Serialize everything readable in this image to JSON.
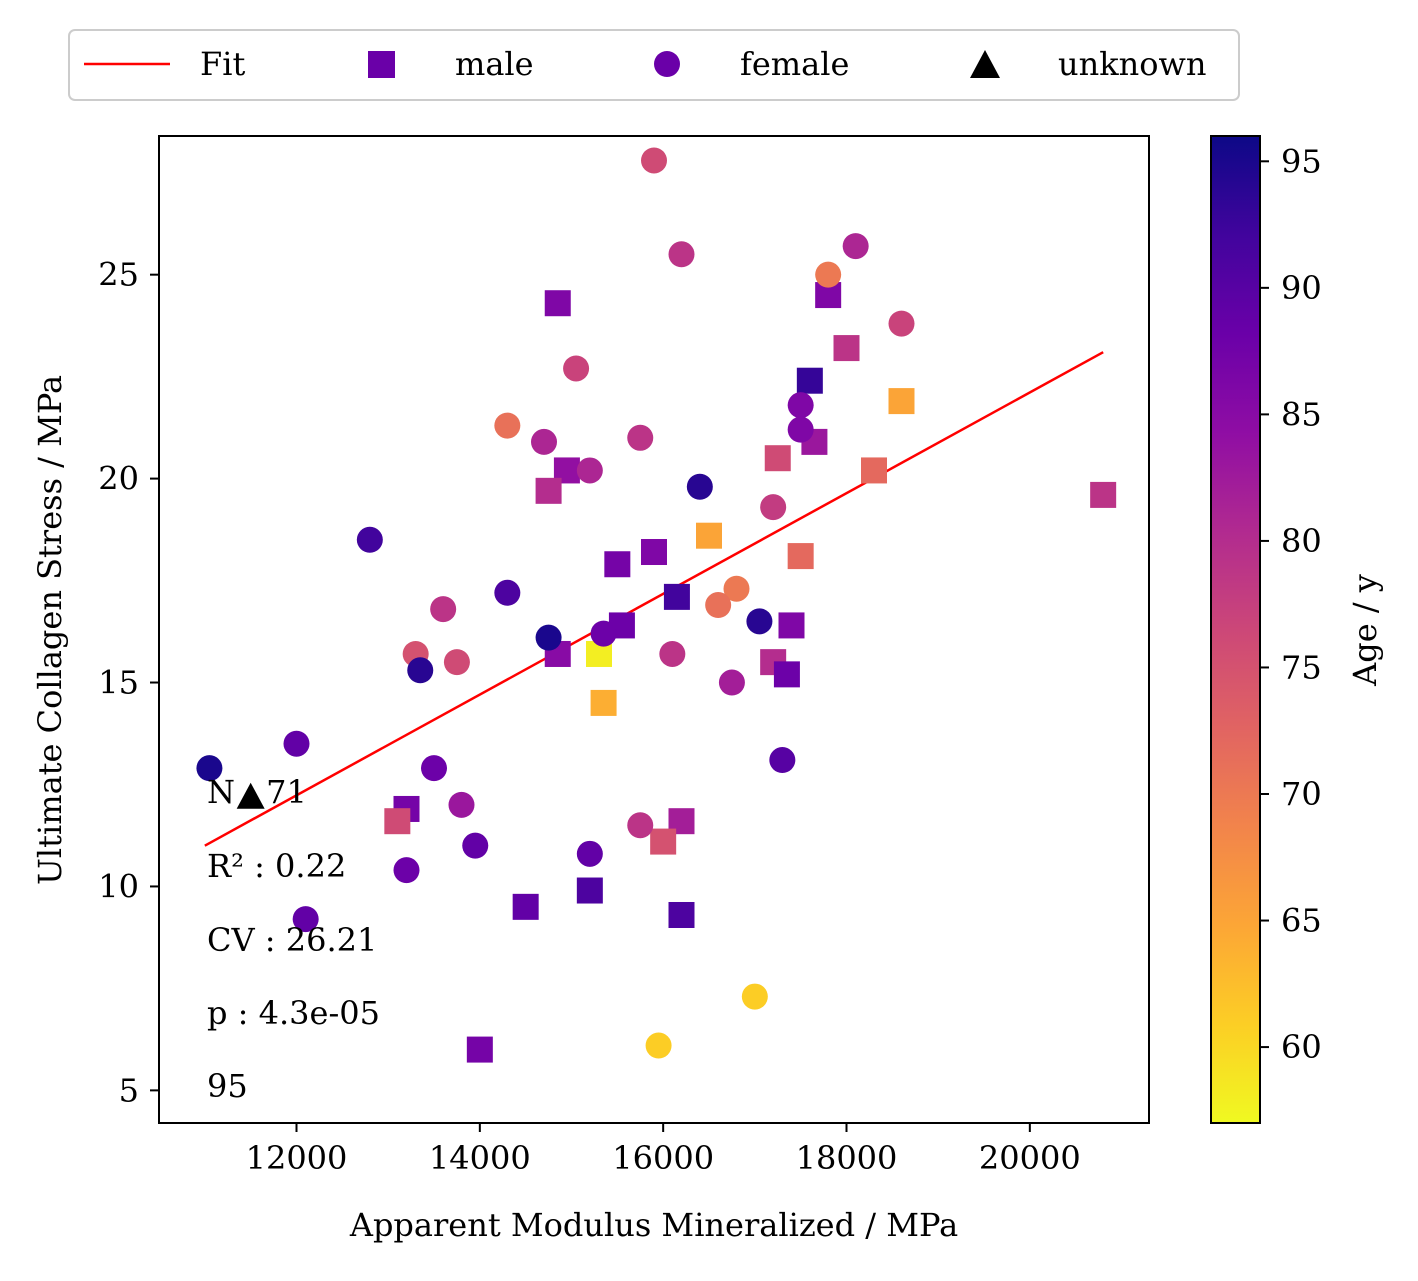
{
  "chart_data": {
    "type": "scatter",
    "xlabel": "Apparent Modulus Mineralized / MPa",
    "ylabel": "Ultimate Collagen Stress / MPa",
    "xlim": [
      10500,
      21300
    ],
    "ylim": [
      4.2,
      28.4
    ],
    "xticks": [
      12000,
      14000,
      16000,
      18000,
      20000
    ],
    "yticks": [
      5,
      10,
      15,
      20,
      25
    ],
    "grid": false,
    "legend": {
      "placement": "top, outside, horizontal",
      "entries": [
        {
          "label": "Fit",
          "marker": "line",
          "color": "#ff0000"
        },
        {
          "label": "male",
          "marker": "square",
          "color": "#6a00a8"
        },
        {
          "label": "female",
          "marker": "circle",
          "color": "#6a00a8"
        },
        {
          "label": "unknown",
          "marker": "triangle",
          "color": "#000000"
        }
      ]
    },
    "colorbar": {
      "label": "Age / y",
      "colormap": "plasma",
      "range": [
        57,
        96
      ],
      "ticks": [
        60,
        65,
        70,
        75,
        80,
        85,
        90,
        95
      ]
    },
    "fit": {
      "x": [
        11000,
        20800
      ],
      "y": [
        11.0,
        23.1
      ],
      "color": "#ff0000"
    },
    "annotations": [
      {
        "text": "N : 71"
      },
      {
        "text": "R² : 0.22"
      },
      {
        "text": "CV : 26.21"
      },
      {
        "text": "p : 4.3e-05"
      },
      {
        "text": "95"
      }
    ],
    "series": [
      {
        "name": "male",
        "marker": "square",
        "points": [
          {
            "x": 14850,
            "y": 24.3,
            "age": 86
          },
          {
            "x": 17800,
            "y": 24.5,
            "age": 86
          },
          {
            "x": 18000,
            "y": 23.2,
            "age": 79
          },
          {
            "x": 17600,
            "y": 22.4,
            "age": 93
          },
          {
            "x": 18600,
            "y": 21.9,
            "age": 65
          },
          {
            "x": 17650,
            "y": 20.9,
            "age": 83
          },
          {
            "x": 17250,
            "y": 20.5,
            "age": 76
          },
          {
            "x": 14950,
            "y": 20.2,
            "age": 84
          },
          {
            "x": 14750,
            "y": 19.7,
            "age": 80
          },
          {
            "x": 18300,
            "y": 20.2,
            "age": 72
          },
          {
            "x": 20800,
            "y": 19.6,
            "age": 79
          },
          {
            "x": 16500,
            "y": 18.6,
            "age": 65
          },
          {
            "x": 15900,
            "y": 18.2,
            "age": 86
          },
          {
            "x": 17500,
            "y": 18.1,
            "age": 72
          },
          {
            "x": 15500,
            "y": 17.9,
            "age": 87
          },
          {
            "x": 16150,
            "y": 17.1,
            "age": 92
          },
          {
            "x": 15550,
            "y": 16.4,
            "age": 88
          },
          {
            "x": 17400,
            "y": 16.4,
            "age": 86
          },
          {
            "x": 14850,
            "y": 15.7,
            "age": 85
          },
          {
            "x": 15300,
            "y": 15.7,
            "age": 58
          },
          {
            "x": 17200,
            "y": 15.5,
            "age": 80
          },
          {
            "x": 17350,
            "y": 15.2,
            "age": 88
          },
          {
            "x": 15350,
            "y": 14.5,
            "age": 64
          },
          {
            "x": 13200,
            "y": 11.9,
            "age": 87
          },
          {
            "x": 13100,
            "y": 11.6,
            "age": 76
          },
          {
            "x": 16200,
            "y": 11.6,
            "age": 82
          },
          {
            "x": 16000,
            "y": 11.1,
            "age": 75
          },
          {
            "x": 15200,
            "y": 9.9,
            "age": 91
          },
          {
            "x": 14500,
            "y": 9.5,
            "age": 89
          },
          {
            "x": 16200,
            "y": 9.3,
            "age": 91
          },
          {
            "x": 14000,
            "y": 6.0,
            "age": 87
          }
        ]
      },
      {
        "name": "female",
        "marker": "circle",
        "points": [
          {
            "x": 15900,
            "y": 27.8,
            "age": 76
          },
          {
            "x": 16200,
            "y": 25.5,
            "age": 79
          },
          {
            "x": 18100,
            "y": 25.7,
            "age": 81
          },
          {
            "x": 17800,
            "y": 25.0,
            "age": 70
          },
          {
            "x": 18600,
            "y": 23.8,
            "age": 77
          },
          {
            "x": 15050,
            "y": 22.7,
            "age": 77
          },
          {
            "x": 17500,
            "y": 21.8,
            "age": 86
          },
          {
            "x": 17500,
            "y": 21.2,
            "age": 86
          },
          {
            "x": 14300,
            "y": 21.3,
            "age": 71
          },
          {
            "x": 14700,
            "y": 20.9,
            "age": 81
          },
          {
            "x": 15750,
            "y": 21.0,
            "age": 79
          },
          {
            "x": 15200,
            "y": 20.2,
            "age": 81
          },
          {
            "x": 16400,
            "y": 19.8,
            "age": 94
          },
          {
            "x": 17200,
            "y": 19.3,
            "age": 78
          },
          {
            "x": 12800,
            "y": 18.5,
            "age": 92
          },
          {
            "x": 14300,
            "y": 17.2,
            "age": 91
          },
          {
            "x": 16800,
            "y": 17.3,
            "age": 70
          },
          {
            "x": 16600,
            "y": 16.9,
            "age": 71
          },
          {
            "x": 13600,
            "y": 16.8,
            "age": 79
          },
          {
            "x": 14750,
            "y": 16.1,
            "age": 95
          },
          {
            "x": 15350,
            "y": 16.2,
            "age": 88
          },
          {
            "x": 17050,
            "y": 16.5,
            "age": 94
          },
          {
            "x": 13300,
            "y": 15.7,
            "age": 75
          },
          {
            "x": 13750,
            "y": 15.5,
            "age": 76
          },
          {
            "x": 16100,
            "y": 15.7,
            "age": 79
          },
          {
            "x": 16750,
            "y": 15.0,
            "age": 82
          },
          {
            "x": 13350,
            "y": 15.3,
            "age": 94
          },
          {
            "x": 12000,
            "y": 13.5,
            "age": 89
          },
          {
            "x": 11050,
            "y": 12.9,
            "age": 95
          },
          {
            "x": 13500,
            "y": 12.9,
            "age": 88
          },
          {
            "x": 17300,
            "y": 13.1,
            "age": 90
          },
          {
            "x": 13800,
            "y": 12.0,
            "age": 83
          },
          {
            "x": 15750,
            "y": 11.5,
            "age": 79
          },
          {
            "x": 13950,
            "y": 11.0,
            "age": 89
          },
          {
            "x": 13200,
            "y": 10.4,
            "age": 88
          },
          {
            "x": 15200,
            "y": 10.8,
            "age": 89
          },
          {
            "x": 12100,
            "y": 9.2,
            "age": 89
          },
          {
            "x": 17000,
            "y": 7.3,
            "age": 61
          },
          {
            "x": 15950,
            "y": 6.1,
            "age": 61
          }
        ]
      },
      {
        "name": "unknown",
        "marker": "triangle",
        "points": [
          {
            "x": 11500,
            "y": 12.2
          }
        ]
      }
    ]
  }
}
